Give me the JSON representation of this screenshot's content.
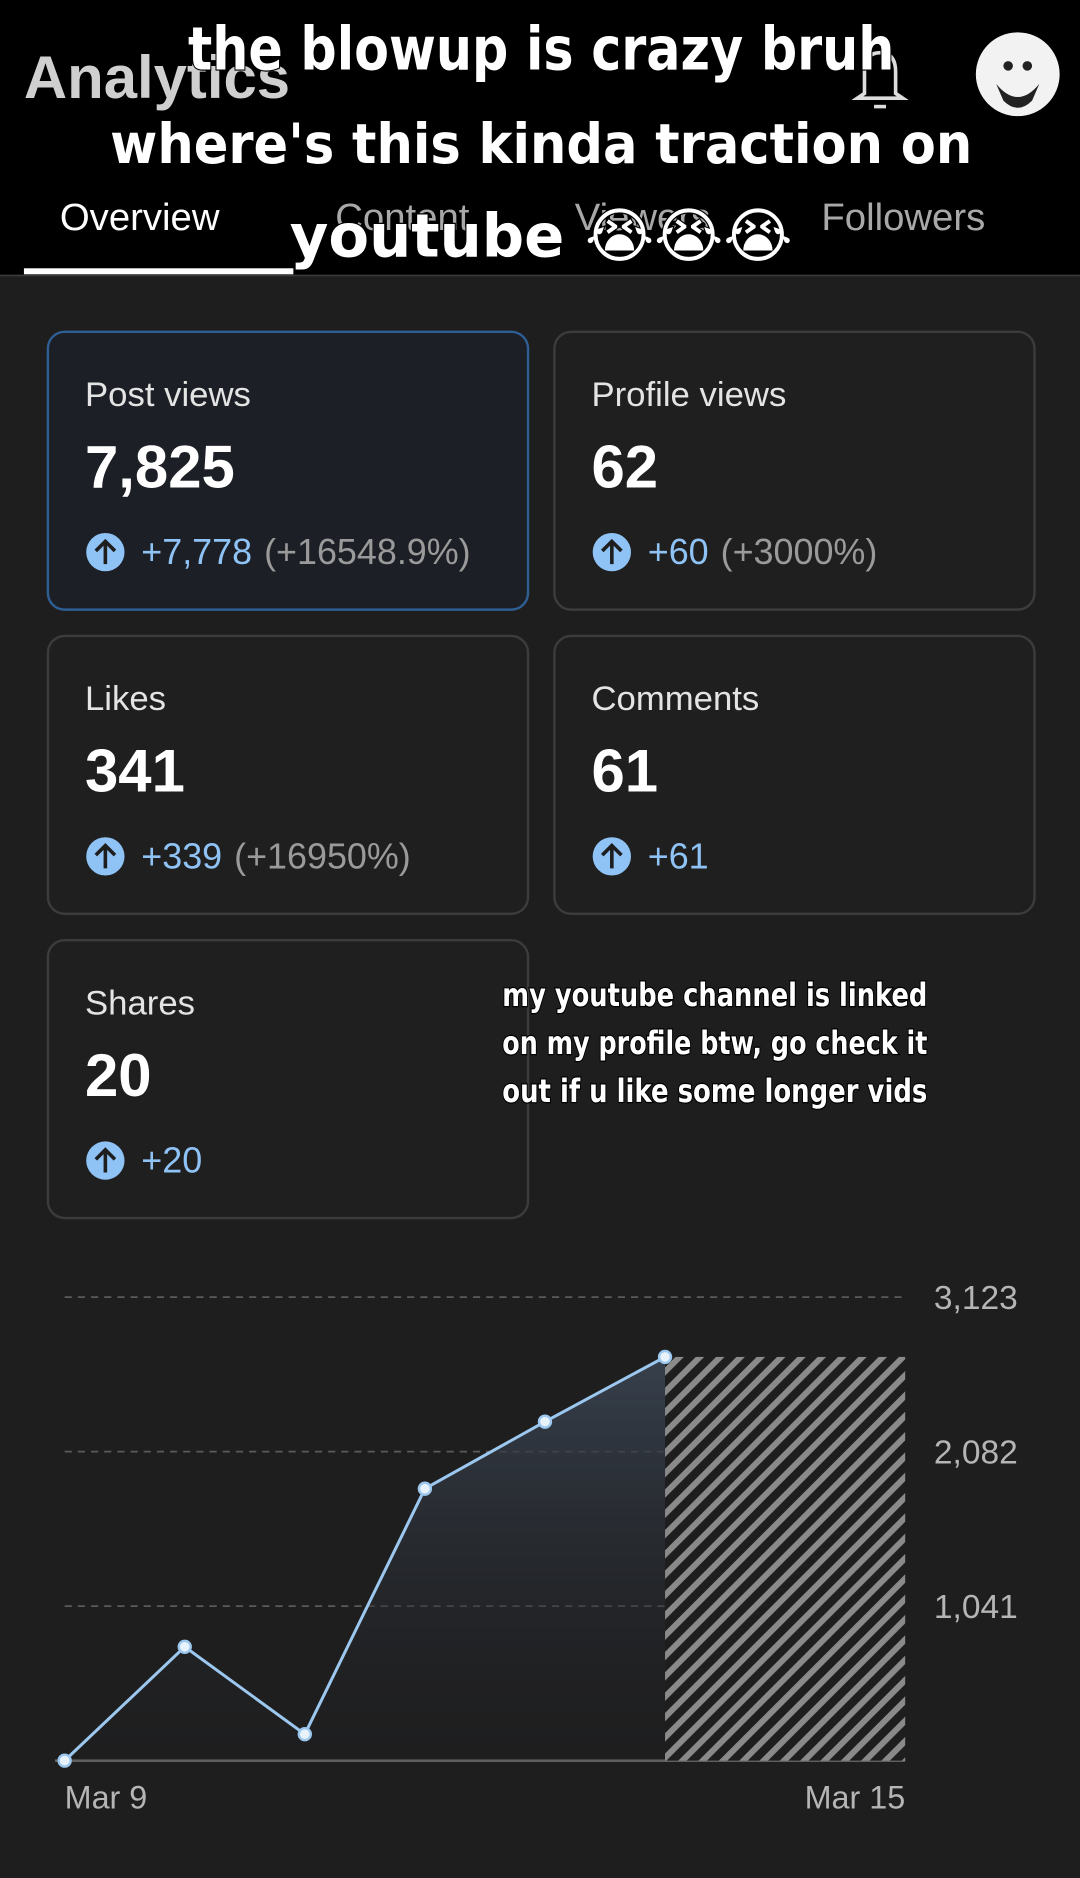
{
  "header": {
    "title": "Analytics",
    "tabs": [
      "Overview",
      "Content",
      "Viewers",
      "Followers"
    ]
  },
  "caption": [
    "the blowup is crazy bruh",
    "where's this kinda traction on",
    "youtube 😭😭😭"
  ],
  "cards": [
    {
      "label": "Post views",
      "value": "7,825",
      "delta": "+7,778",
      "pct": "(+16548.9%)"
    },
    {
      "label": "Profile views",
      "value": "62",
      "delta": "+60",
      "pct": "(+3000%)"
    },
    {
      "label": "Likes",
      "value": "341",
      "delta": "+339",
      "pct": "(+16950%)"
    },
    {
      "label": "Comments",
      "value": "61",
      "delta": "+61"
    },
    {
      "label": "Shares",
      "value": "20",
      "delta": "+20"
    }
  ],
  "note": [
    "my youtube channel is linked",
    "on my profile btw, go check it",
    "out if u like some longer vids"
  ],
  "chart_data": {
    "type": "line",
    "categories": [
      "Mar 9",
      null,
      null,
      null,
      null,
      null,
      "Mar 15"
    ],
    "values": [
      0,
      767,
      178,
      1832,
      2284,
      2720,
      null
    ],
    "color": "#9cc8ef",
    "ylim": [
      0,
      3123
    ],
    "yticks": [
      {
        "value": 1041,
        "label": "1,041"
      },
      {
        "value": 2082,
        "label": "2,082"
      },
      {
        "value": 3123,
        "label": "3,123"
      }
    ],
    "grid": true
  }
}
